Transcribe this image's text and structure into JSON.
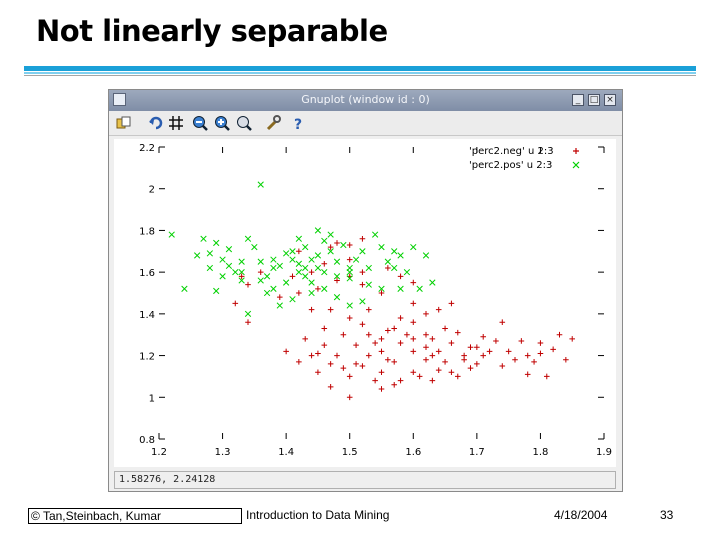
{
  "slide": {
    "title": "Not linearly separable",
    "footer": {
      "copyright": "© Tan,Steinbach, Kumar",
      "course": "Introduction to Data Mining",
      "date": "4/18/2004",
      "page": "33"
    }
  },
  "window": {
    "title": "Gnuplot (window id : 0)",
    "buttons": [
      "_",
      "□",
      "×"
    ],
    "toolbar_icons": [
      "copy-icon",
      "replot-icon",
      "grid-icon",
      "zoom-prev-icon",
      "zoom-next-icon",
      "autoscale-icon",
      "settings-icon",
      "help-icon"
    ],
    "status": "1.58276,  2.24128"
  },
  "colors": {
    "neg": "#c00000",
    "pos": "#00d000",
    "titlebar": "#8b98b0",
    "accent_rule": "#1aa0d8"
  },
  "chart_data": {
    "type": "scatter",
    "title": "",
    "xlabel": "",
    "ylabel": "",
    "xlim": [
      1.2,
      1.9
    ],
    "ylim": [
      0.8,
      2.2
    ],
    "x_ticks": [
      "1.2",
      "1.3",
      "1.4",
      "1.5",
      "1.6",
      "1.7",
      "1.8",
      "1.9"
    ],
    "x_tick_values": [
      1.2,
      1.3,
      1.4,
      1.5,
      1.6,
      1.7,
      1.8,
      1.9
    ],
    "y_ticks": [
      "0.8",
      "1",
      "1.2",
      "1.4",
      "1.6",
      "1.8",
      "2",
      "2.2"
    ],
    "y_tick_values": [
      0.8,
      1.0,
      1.2,
      1.4,
      1.6,
      1.8,
      2.0,
      2.2
    ],
    "legend_position": "top-right",
    "series": [
      {
        "name": "'perc2.neg' u 2:3",
        "marker": "+",
        "color": "#c00000",
        "points": [
          [
            1.32,
            1.45
          ],
          [
            1.33,
            1.58
          ],
          [
            1.34,
            1.36
          ],
          [
            1.41,
            1.58
          ],
          [
            1.42,
            1.5
          ],
          [
            1.44,
            1.42
          ],
          [
            1.45,
            1.52
          ],
          [
            1.46,
            1.64
          ],
          [
            1.47,
            1.72
          ],
          [
            1.48,
            1.74
          ],
          [
            1.5,
            1.73
          ],
          [
            1.52,
            1.76
          ],
          [
            1.5,
            1.66
          ],
          [
            1.52,
            1.54
          ],
          [
            1.55,
            1.5
          ],
          [
            1.47,
            1.42
          ],
          [
            1.5,
            1.38
          ],
          [
            1.52,
            1.35
          ],
          [
            1.49,
            1.3
          ],
          [
            1.51,
            1.25
          ],
          [
            1.53,
            1.3
          ],
          [
            1.55,
            1.28
          ],
          [
            1.57,
            1.33
          ],
          [
            1.59,
            1.3
          ],
          [
            1.6,
            1.36
          ],
          [
            1.62,
            1.3
          ],
          [
            1.63,
            1.28
          ],
          [
            1.65,
            1.33
          ],
          [
            1.67,
            1.31
          ],
          [
            1.69,
            1.24
          ],
          [
            1.71,
            1.29
          ],
          [
            1.74,
            1.36
          ],
          [
            1.77,
            1.27
          ],
          [
            1.8,
            1.21
          ],
          [
            1.82,
            1.23
          ],
          [
            1.83,
            1.3
          ],
          [
            1.84,
            1.18
          ],
          [
            1.85,
            1.28
          ],
          [
            1.78,
            1.11
          ],
          [
            1.81,
            1.1
          ],
          [
            1.76,
            1.18
          ],
          [
            1.74,
            1.15
          ],
          [
            1.71,
            1.2
          ],
          [
            1.69,
            1.14
          ],
          [
            1.67,
            1.1
          ],
          [
            1.64,
            1.13
          ],
          [
            1.62,
            1.18
          ],
          [
            1.6,
            1.12
          ],
          [
            1.58,
            1.08
          ],
          [
            1.56,
            1.18
          ],
          [
            1.54,
            1.08
          ],
          [
            1.52,
            1.15
          ],
          [
            1.5,
            1.1
          ],
          [
            1.48,
            1.2
          ],
          [
            1.46,
            1.25
          ],
          [
            1.44,
            1.2
          ],
          [
            1.42,
            1.17
          ],
          [
            1.4,
            1.22
          ],
          [
            1.45,
            1.12
          ],
          [
            1.47,
            1.05
          ],
          [
            1.5,
            1.0
          ],
          [
            1.55,
            1.04
          ],
          [
            1.57,
            1.17
          ],
          [
            1.6,
            1.22
          ],
          [
            1.62,
            1.24
          ],
          [
            1.64,
            1.22
          ],
          [
            1.66,
            1.26
          ],
          [
            1.68,
            1.18
          ],
          [
            1.7,
            1.16
          ],
          [
            1.72,
            1.22
          ],
          [
            1.75,
            1.22
          ],
          [
            1.78,
            1.2
          ],
          [
            1.8,
            1.26
          ],
          [
            1.55,
            1.22
          ],
          [
            1.53,
            1.2
          ],
          [
            1.51,
            1.16
          ],
          [
            1.58,
            1.26
          ],
          [
            1.6,
            1.28
          ],
          [
            1.63,
            1.2
          ],
          [
            1.65,
            1.17
          ],
          [
            1.56,
            1.32
          ],
          [
            1.54,
            1.26
          ],
          [
            1.49,
            1.14
          ],
          [
            1.47,
            1.16
          ],
          [
            1.45,
            1.21
          ],
          [
            1.43,
            1.28
          ],
          [
            1.46,
            1.33
          ],
          [
            1.62,
            1.4
          ],
          [
            1.64,
            1.42
          ],
          [
            1.66,
            1.45
          ],
          [
            1.6,
            1.55
          ],
          [
            1.58,
            1.58
          ],
          [
            1.56,
            1.62
          ],
          [
            1.52,
            1.6
          ],
          [
            1.5,
            1.58
          ],
          [
            1.48,
            1.56
          ],
          [
            1.44,
            1.6
          ],
          [
            1.42,
            1.7
          ],
          [
            1.36,
            1.6
          ],
          [
            1.34,
            1.54
          ],
          [
            1.39,
            1.48
          ],
          [
            1.53,
            1.42
          ],
          [
            1.58,
            1.38
          ],
          [
            1.6,
            1.45
          ],
          [
            1.55,
            1.12
          ],
          [
            1.57,
            1.06
          ],
          [
            1.61,
            1.1
          ],
          [
            1.63,
            1.08
          ],
          [
            1.66,
            1.12
          ],
          [
            1.68,
            1.2
          ],
          [
            1.7,
            1.24
          ],
          [
            1.73,
            1.27
          ],
          [
            1.79,
            1.17
          ]
        ]
      },
      {
        "name": "'perc2.pos' u 2:3",
        "marker": "x",
        "color": "#00d000",
        "points": [
          [
            1.22,
            1.78
          ],
          [
            1.24,
            1.52
          ],
          [
            1.26,
            1.68
          ],
          [
            1.28,
            1.62
          ],
          [
            1.29,
            1.51
          ],
          [
            1.3,
            1.66
          ],
          [
            1.31,
            1.63
          ],
          [
            1.32,
            1.6
          ],
          [
            1.3,
            1.58
          ],
          [
            1.31,
            1.71
          ],
          [
            1.33,
            1.65
          ],
          [
            1.33,
            1.6
          ],
          [
            1.34,
            1.76
          ],
          [
            1.35,
            1.72
          ],
          [
            1.36,
            2.02
          ],
          [
            1.36,
            1.65
          ],
          [
            1.37,
            1.58
          ],
          [
            1.38,
            1.62
          ],
          [
            1.38,
            1.52
          ],
          [
            1.39,
            1.63
          ],
          [
            1.4,
            1.69
          ],
          [
            1.4,
            1.55
          ],
          [
            1.41,
            1.66
          ],
          [
            1.41,
            1.47
          ],
          [
            1.42,
            1.6
          ],
          [
            1.42,
            1.76
          ],
          [
            1.43,
            1.72
          ],
          [
            1.43,
            1.62
          ],
          [
            1.44,
            1.66
          ],
          [
            1.44,
            1.55
          ],
          [
            1.45,
            1.8
          ],
          [
            1.45,
            1.68
          ],
          [
            1.46,
            1.6
          ],
          [
            1.46,
            1.52
          ],
          [
            1.47,
            1.78
          ],
          [
            1.47,
            1.7
          ],
          [
            1.48,
            1.65
          ],
          [
            1.48,
            1.48
          ],
          [
            1.49,
            1.73
          ],
          [
            1.5,
            1.62
          ],
          [
            1.5,
            1.57
          ],
          [
            1.51,
            1.66
          ],
          [
            1.52,
            1.7
          ],
          [
            1.53,
            1.62
          ],
          [
            1.54,
            1.78
          ],
          [
            1.55,
            1.72
          ],
          [
            1.56,
            1.65
          ],
          [
            1.57,
            1.7
          ],
          [
            1.58,
            1.52
          ],
          [
            1.59,
            1.6
          ],
          [
            1.6,
            1.72
          ],
          [
            1.61,
            1.52
          ],
          [
            1.62,
            1.68
          ],
          [
            1.36,
            1.56
          ],
          [
            1.37,
            1.5
          ],
          [
            1.39,
            1.44
          ],
          [
            1.34,
            1.4
          ],
          [
            1.33,
            1.56
          ],
          [
            1.43,
            1.58
          ],
          [
            1.38,
            1.66
          ],
          [
            1.42,
            1.64
          ],
          [
            1.45,
            1.62
          ],
          [
            1.48,
            1.58
          ],
          [
            1.5,
            1.44
          ],
          [
            1.52,
            1.46
          ],
          [
            1.55,
            1.52
          ],
          [
            1.57,
            1.62
          ],
          [
            1.63,
            1.55
          ],
          [
            1.58,
            1.68
          ],
          [
            1.29,
            1.74
          ],
          [
            1.28,
            1.69
          ],
          [
            1.27,
            1.76
          ],
          [
            1.5,
            1.6
          ],
          [
            1.53,
            1.54
          ],
          [
            1.44,
            1.5
          ],
          [
            1.41,
            1.7
          ],
          [
            1.46,
            1.75
          ]
        ]
      }
    ]
  }
}
